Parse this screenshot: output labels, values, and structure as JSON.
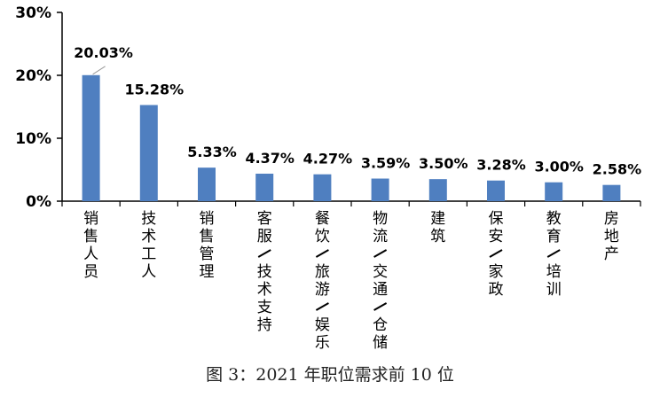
{
  "caption": "图 3：2021 年职位需求前 10 位",
  "chart_data": {
    "type": "bar",
    "categories": [
      "销售人员",
      "技术工人",
      "销售管理",
      "客服/技术支持",
      "餐饮/旅游/娱乐",
      "物流/交通/仓储",
      "建筑",
      "保安/家政",
      "教育/培训",
      "房地产"
    ],
    "values": [
      20.03,
      15.28,
      5.33,
      4.37,
      4.27,
      3.59,
      3.5,
      3.28,
      3.0,
      2.58
    ],
    "value_labels": [
      "20.03%",
      "15.28%",
      "5.33%",
      "4.37%",
      "4.27%",
      "3.59%",
      "3.50%",
      "3.28%",
      "3.00%",
      "2.58%"
    ],
    "ylim": [
      0,
      30
    ],
    "yticks": [
      0,
      10,
      20,
      30
    ],
    "ytick_labels": [
      "0%",
      "10%",
      "20%",
      "30%"
    ],
    "grid": false,
    "bar_color": "#4f7fc0",
    "axis_color": "#000000"
  }
}
